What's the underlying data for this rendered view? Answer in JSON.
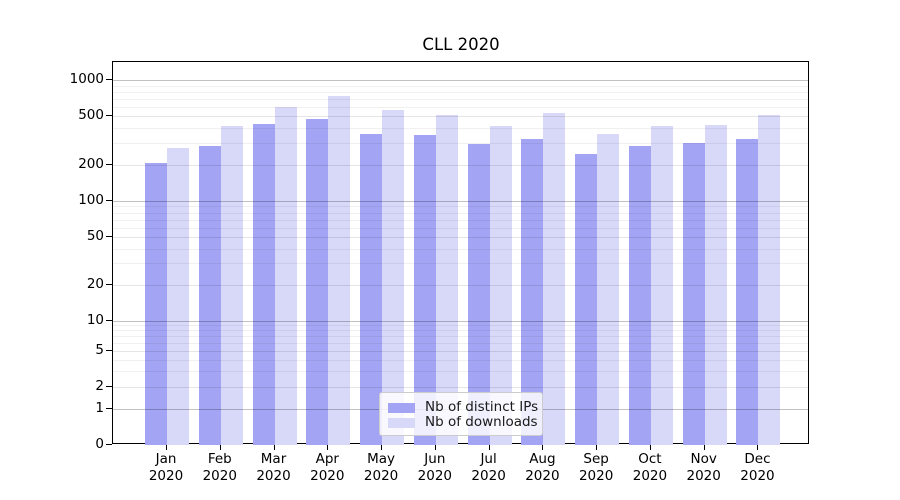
{
  "chart_data": {
    "type": "bar",
    "title": "CLL 2020",
    "categories": [
      "Jan",
      "Feb",
      "Mar",
      "Apr",
      "May",
      "Jun",
      "Jul",
      "Aug",
      "Sep",
      "Oct",
      "Nov",
      "Dec"
    ],
    "category_year": "2020",
    "series": [
      {
        "name": "Nb of distinct IPs",
        "color": "#a4a4f4",
        "values": [
          205,
          287,
          431,
          478,
          355,
          349,
          295,
          325,
          245,
          284,
          303,
          328
        ]
      },
      {
        "name": "Nb of downloads",
        "color": "#d8d8f8",
        "values": [
          275,
          418,
          601,
          734,
          563,
          510,
          419,
          535,
          355,
          414,
          425,
          512
        ]
      }
    ],
    "y_ticks": [
      1000,
      500,
      200,
      100,
      50,
      20,
      10,
      5,
      2,
      1,
      0
    ],
    "yscale": "log-with-zero",
    "ylim": [
      0,
      1400
    ],
    "grid": true,
    "legend_position": "lower-center-inside"
  }
}
